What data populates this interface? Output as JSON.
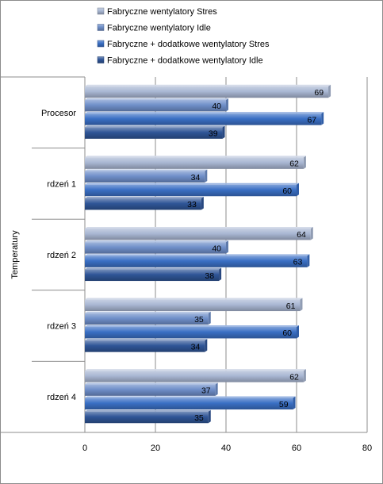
{
  "chart_data": {
    "type": "bar",
    "orientation": "horizontal",
    "ylabel": "Temperatury",
    "categories": [
      "Procesor",
      "rdzeń 1",
      "rdzeń 2",
      "rdzeń 3",
      "rdzeń 4"
    ],
    "series": [
      {
        "name": "Fabryczne  wentylatory Stres",
        "values": [
          69,
          62,
          64,
          61,
          62
        ],
        "color": "#a9b7d3"
      },
      {
        "name": "Fabryczne  wentylatory Idle",
        "values": [
          40,
          34,
          40,
          35,
          37
        ],
        "color": "#6f8fc9"
      },
      {
        "name": "Fabryczne + dodatkowe  wentylatory Stres",
        "values": [
          67,
          60,
          63,
          60,
          59
        ],
        "color": "#3a6fc4"
      },
      {
        "name": "Fabryczne + dodatkowe  wentylatory Idle",
        "values": [
          39,
          33,
          38,
          34,
          35
        ],
        "color": "#2f5597"
      }
    ],
    "xticks": [
      "0",
      "20",
      "40",
      "60",
      "80"
    ],
    "xlim": [
      0,
      80
    ],
    "legend": "top",
    "grid": "vertical"
  }
}
